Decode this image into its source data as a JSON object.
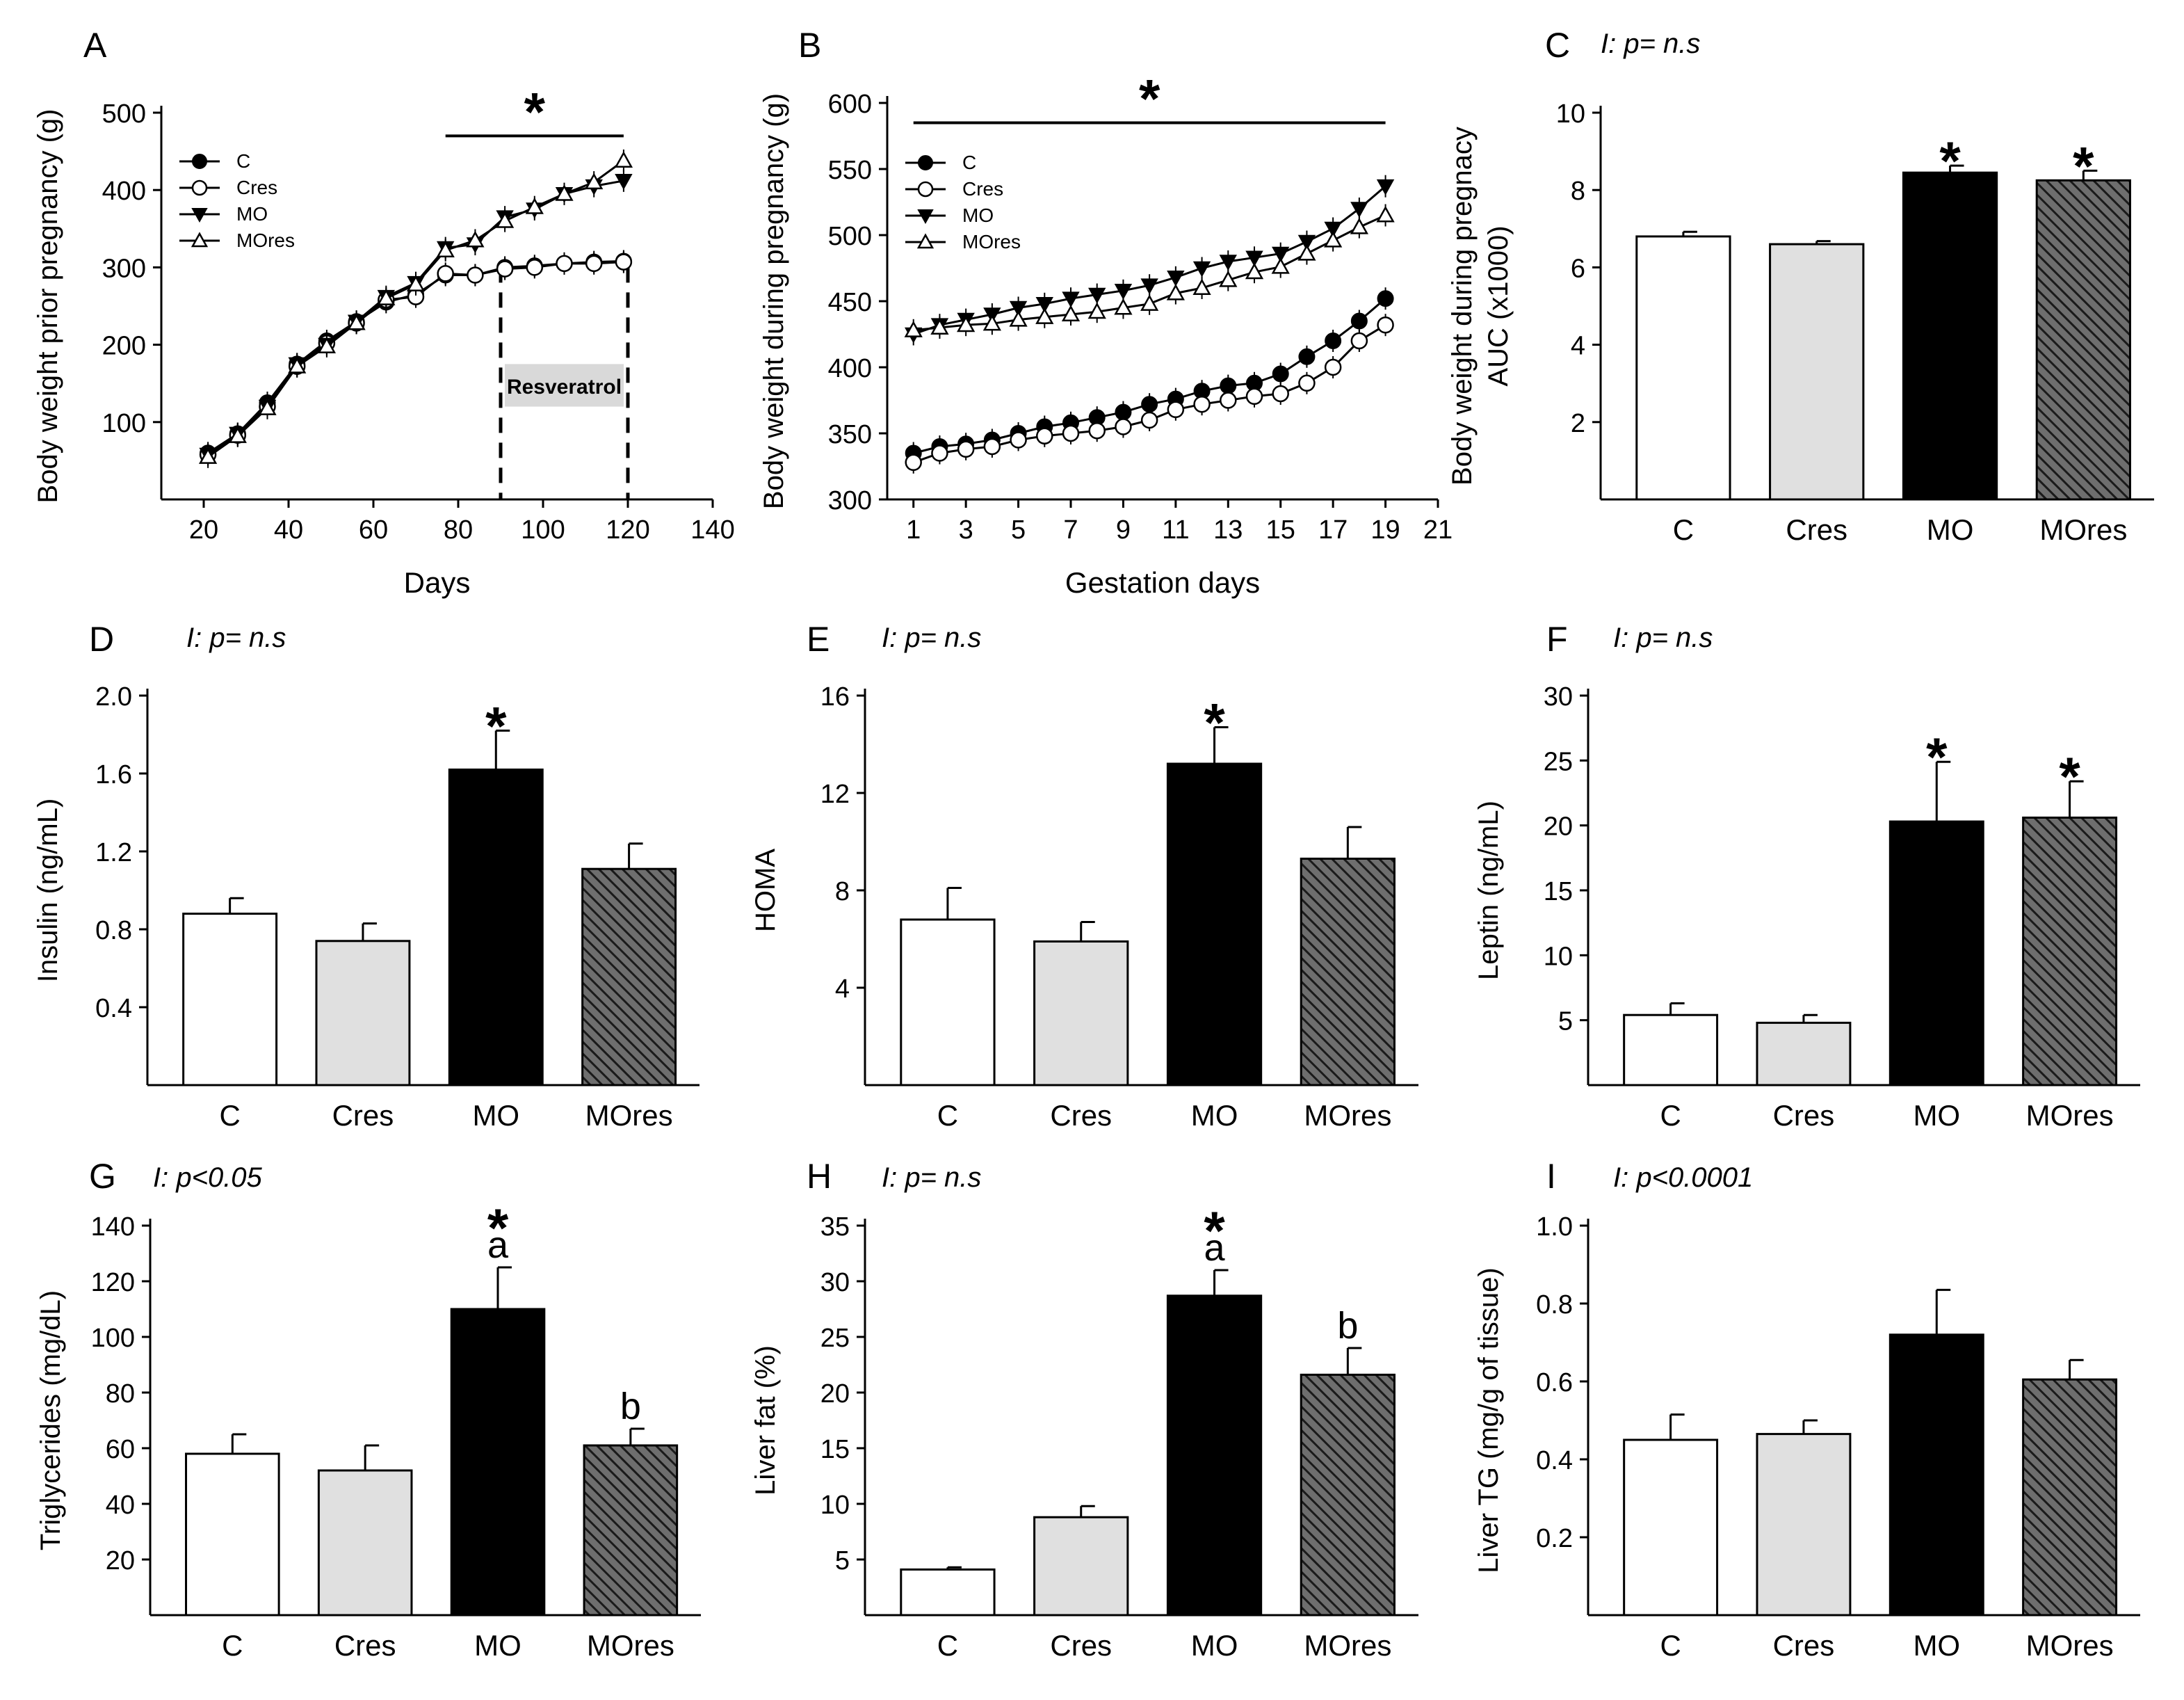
{
  "colors": {
    "C": "#ffffff",
    "Cres": "#e0e0e0",
    "MO": "#000000",
    "MOres": "#6e6e6e",
    "resveratrol_box": "#d9d9d9"
  },
  "chart_data": [
    {
      "id": "A",
      "type": "line",
      "panel_label": "A",
      "annotation": "",
      "xlabel": "Days",
      "ylabel": "Body weight prior pregnancy (g)",
      "xlim": [
        10,
        140
      ],
      "ylim": [
        0,
        500
      ],
      "xticks": [
        20,
        40,
        60,
        80,
        100,
        120,
        140
      ],
      "yticks": [
        100,
        200,
        300,
        400,
        500
      ],
      "legend": [
        "C",
        "Cres",
        "MO",
        "MOres"
      ],
      "series": [
        {
          "name": "C",
          "marker": "filled-circle",
          "x": [
            21,
            28,
            35,
            42,
            49,
            56,
            63,
            70,
            77,
            84,
            91,
            98,
            105,
            112,
            119
          ],
          "y": [
            60,
            85,
            125,
            175,
            205,
            230,
            255,
            265,
            290,
            290,
            300,
            302,
            305,
            307,
            308
          ]
        },
        {
          "name": "Cres",
          "marker": "open-circle",
          "x": [
            21,
            28,
            35,
            42,
            49,
            56,
            63,
            70,
            77,
            84,
            91,
            98,
            105,
            112,
            119
          ],
          "y": [
            58,
            83,
            120,
            172,
            202,
            228,
            258,
            262,
            292,
            290,
            298,
            300,
            305,
            305,
            307
          ]
        },
        {
          "name": "MO",
          "marker": "filled-triangle-down",
          "x": [
            21,
            28,
            35,
            42,
            49,
            56,
            63,
            70,
            77,
            84,
            91,
            98,
            105,
            112,
            119
          ],
          "y": [
            58,
            85,
            120,
            175,
            200,
            230,
            262,
            280,
            325,
            330,
            365,
            375,
            395,
            405,
            412
          ]
        },
        {
          "name": "MOres",
          "marker": "open-triangle-up",
          "x": [
            21,
            28,
            35,
            42,
            49,
            56,
            63,
            70,
            77,
            84,
            91,
            98,
            105,
            112,
            119
          ],
          "y": [
            55,
            82,
            118,
            172,
            198,
            228,
            260,
            278,
            322,
            335,
            360,
            378,
            395,
            410,
            438
          ]
        }
      ],
      "significance": {
        "symbol": "*",
        "from": 77,
        "to": 119
      },
      "resveratrol": {
        "label": "Resveratrol",
        "from": 90,
        "to": 120
      }
    },
    {
      "id": "B",
      "type": "line",
      "panel_label": "B",
      "annotation": "",
      "xlabel": "Gestation days",
      "ylabel": "Body weight during pregnancy (g)",
      "xlim": [
        0,
        21
      ],
      "ylim": [
        300,
        600
      ],
      "xticks": [
        1,
        3,
        5,
        7,
        9,
        11,
        13,
        15,
        17,
        19,
        21
      ],
      "yticks": [
        300,
        350,
        400,
        450,
        500,
        550,
        600
      ],
      "legend": [
        "C",
        "Cres",
        "MO",
        "MOres"
      ],
      "series": [
        {
          "name": "C",
          "marker": "filled-circle",
          "x": [
            1,
            2,
            3,
            4,
            5,
            6,
            7,
            8,
            9,
            10,
            11,
            12,
            13,
            14,
            15,
            16,
            17,
            18,
            19
          ],
          "y": [
            335,
            340,
            342,
            345,
            350,
            355,
            358,
            362,
            366,
            372,
            376,
            382,
            386,
            388,
            395,
            408,
            420,
            435,
            452
          ]
        },
        {
          "name": "Cres",
          "marker": "open-circle",
          "x": [
            1,
            2,
            3,
            4,
            5,
            6,
            7,
            8,
            9,
            10,
            11,
            12,
            13,
            14,
            15,
            16,
            17,
            18,
            19
          ],
          "y": [
            328,
            335,
            338,
            340,
            345,
            348,
            350,
            352,
            355,
            360,
            368,
            372,
            375,
            378,
            380,
            388,
            400,
            420,
            432
          ]
        },
        {
          "name": "MO",
          "marker": "filled-triangle-down",
          "x": [
            1,
            2,
            3,
            4,
            5,
            6,
            7,
            8,
            9,
            10,
            11,
            12,
            13,
            14,
            15,
            16,
            17,
            18,
            19
          ],
          "y": [
            425,
            432,
            436,
            440,
            445,
            448,
            452,
            455,
            458,
            462,
            468,
            475,
            480,
            483,
            486,
            495,
            505,
            520,
            537
          ]
        },
        {
          "name": "MOres",
          "marker": "open-triangle-up",
          "x": [
            1,
            2,
            3,
            4,
            5,
            6,
            7,
            8,
            9,
            10,
            11,
            12,
            13,
            14,
            15,
            16,
            17,
            18,
            19
          ],
          "y": [
            428,
            430,
            432,
            433,
            436,
            438,
            440,
            442,
            445,
            448,
            456,
            460,
            466,
            472,
            476,
            486,
            496,
            506,
            515
          ]
        }
      ],
      "significance": {
        "symbol": "*",
        "from": 1,
        "to": 19
      }
    },
    {
      "id": "C",
      "type": "bar",
      "panel_label": "C",
      "annotation": "I: p= n.s",
      "ylabel": [
        "Body weight during pregnacy",
        "AUC (x1000)"
      ],
      "categories": [
        "C",
        "Cres",
        "MO",
        "MOres"
      ],
      "values": [
        6.8,
        6.6,
        8.45,
        8.25
      ],
      "errors": [
        0.12,
        0.08,
        0.18,
        0.25
      ],
      "ylim": [
        0,
        10
      ],
      "yticks": [
        2,
        4,
        6,
        8,
        10
      ],
      "marks": [
        [],
        [],
        [
          "*"
        ],
        [
          "*"
        ]
      ]
    },
    {
      "id": "D",
      "type": "bar",
      "panel_label": "D",
      "annotation": "I: p= n.s",
      "ylabel": [
        "Insulin (ng/mL)"
      ],
      "categories": [
        "C",
        "Cres",
        "MO",
        "MOres"
      ],
      "values": [
        0.88,
        0.74,
        1.62,
        1.11
      ],
      "errors": [
        0.08,
        0.09,
        0.2,
        0.13
      ],
      "ylim": [
        0,
        2.0
      ],
      "yticks": [
        "0.4",
        "0.8",
        "1.2",
        "1.6",
        "2.0"
      ],
      "marks": [
        [],
        [],
        [
          "*"
        ],
        []
      ]
    },
    {
      "id": "E",
      "type": "bar",
      "panel_label": "E",
      "annotation": "I: p= n.s",
      "ylabel": [
        "HOMA"
      ],
      "categories": [
        "C",
        "Cres",
        "MO",
        "MOres"
      ],
      "values": [
        6.8,
        5.9,
        13.2,
        9.3
      ],
      "errors": [
        1.3,
        0.8,
        1.5,
        1.3
      ],
      "ylim": [
        0,
        16
      ],
      "yticks": [
        4,
        8,
        12,
        16
      ],
      "marks": [
        [],
        [],
        [
          "*"
        ],
        []
      ]
    },
    {
      "id": "F",
      "type": "bar",
      "panel_label": "F",
      "annotation": "I: p= n.s",
      "ylabel": [
        "Leptin (ng/mL)"
      ],
      "categories": [
        "C",
        "Cres",
        "MO",
        "MOres"
      ],
      "values": [
        5.4,
        4.8,
        20.3,
        20.6
      ],
      "errors": [
        0.9,
        0.6,
        4.6,
        2.8
      ],
      "ylim": [
        0,
        30
      ],
      "yticks": [
        5,
        10,
        15,
        20,
        25,
        30
      ],
      "marks": [
        [],
        [],
        [
          "*"
        ],
        [
          "*"
        ]
      ]
    },
    {
      "id": "G",
      "type": "bar",
      "panel_label": "G",
      "annotation": "I: p<0.05",
      "ylabel": [
        "Triglycerides (mg/dL)"
      ],
      "categories": [
        "C",
        "Cres",
        "MO",
        "MOres"
      ],
      "values": [
        58,
        52,
        110,
        61
      ],
      "errors": [
        7,
        9,
        15,
        6
      ],
      "ylim": [
        0,
        140
      ],
      "yticks": [
        20,
        40,
        60,
        80,
        100,
        120,
        140
      ],
      "marks": [
        [],
        [],
        [
          "*",
          "a"
        ],
        [
          "b"
        ]
      ]
    },
    {
      "id": "H",
      "type": "bar",
      "panel_label": "H",
      "annotation": "I: p= n.s",
      "ylabel": [
        "Liver fat (%)"
      ],
      "categories": [
        "C",
        "Cres",
        "MO",
        "MOres"
      ],
      "values": [
        4.1,
        8.8,
        28.7,
        21.6
      ],
      "errors": [
        0.2,
        1.0,
        2.3,
        2.4
      ],
      "ylim": [
        0,
        35
      ],
      "yticks": [
        5,
        10,
        15,
        20,
        25,
        30,
        35
      ],
      "marks": [
        [],
        [],
        [
          "*",
          "a"
        ],
        [
          "b"
        ]
      ]
    },
    {
      "id": "I",
      "type": "bar",
      "panel_label": "I",
      "annotation": "I: p<0.0001",
      "ylabel": [
        "Liver TG (mg/g of tissue)"
      ],
      "categories": [
        "C",
        "Cres",
        "MO",
        "MOres"
      ],
      "values": [
        0.45,
        0.465,
        0.72,
        0.605
      ],
      "errors": [
        0.065,
        0.035,
        0.115,
        0.05
      ],
      "ylim": [
        0,
        1.0
      ],
      "yticks": [
        "0.2",
        "0.4",
        "0.6",
        "0.8",
        "1.0"
      ],
      "marks": [
        [],
        [],
        [],
        []
      ]
    }
  ]
}
